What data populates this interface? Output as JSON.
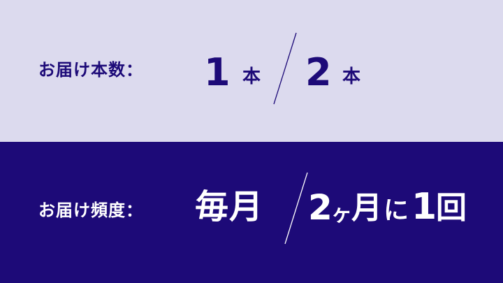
{
  "colors": {
    "accent": "#1d0a78",
    "light_band": "#dcdaee",
    "text_on_dark": "#ffffff"
  },
  "quantity": {
    "label": "お届け本数：",
    "option1_number": "1",
    "option1_unit": "本",
    "option2_number": "2",
    "option2_unit": "本"
  },
  "frequency": {
    "label": "お届け頻度：",
    "option1": "毎月",
    "option2_number": "2",
    "option2_ka": "ヶ",
    "option2_tsuki": "月",
    "option2_ni": "に",
    "option2_one": "1",
    "option2_kai": "回"
  }
}
